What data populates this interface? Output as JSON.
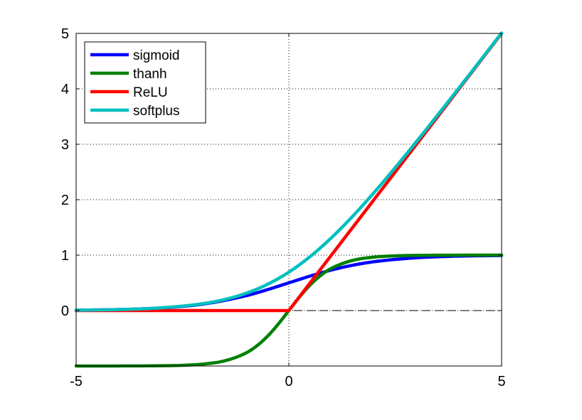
{
  "chart_data": {
    "type": "line",
    "title": "",
    "xlabel": "",
    "ylabel": "",
    "xlim": [
      -5,
      5
    ],
    "ylim": [
      -1,
      5
    ],
    "x_ticks": [
      -5,
      0,
      5
    ],
    "x_tick_labels": [
      "-5",
      "0",
      "5"
    ],
    "y_ticks": [
      0,
      1,
      2,
      3,
      4,
      5
    ],
    "y_tick_labels": [
      "0",
      "1",
      "2",
      "3",
      "4",
      "5"
    ],
    "grid": "dotted",
    "zero_line": "dashed",
    "legend": {
      "placement": "top-left"
    },
    "series": [
      {
        "name": "sigmoid",
        "color": "#0000ff",
        "x": [
          -5,
          -4,
          -3,
          -2,
          -1,
          -0.5,
          0,
          0.5,
          1,
          1.5,
          2,
          3,
          4,
          5
        ],
        "y": [
          0.007,
          0.018,
          0.047,
          0.119,
          0.269,
          0.378,
          0.5,
          0.622,
          0.731,
          0.818,
          0.881,
          0.953,
          0.982,
          0.993
        ]
      },
      {
        "name": "thanh",
        "color": "#008000",
        "x": [
          -5,
          -3,
          -2.5,
          -2,
          -1.5,
          -1,
          -0.75,
          -0.5,
          -0.25,
          0,
          0.25,
          0.5,
          0.75,
          1,
          1.5,
          2,
          2.5,
          3,
          5
        ],
        "y": [
          -1.0,
          -0.995,
          -0.987,
          -0.964,
          -0.905,
          -0.762,
          -0.635,
          -0.462,
          -0.245,
          0,
          0.245,
          0.462,
          0.635,
          0.762,
          0.905,
          0.964,
          0.987,
          0.995,
          1.0
        ]
      },
      {
        "name": "ReLU",
        "color": "#ff0000",
        "x": [
          -5,
          0,
          5
        ],
        "y": [
          0,
          0,
          5
        ]
      },
      {
        "name": "softplus",
        "color": "#00bfbf",
        "x": [
          -5,
          -4,
          -3,
          -2,
          -1.5,
          -1,
          -0.5,
          0,
          0.5,
          1,
          1.5,
          2,
          2.5,
          3,
          4,
          5
        ],
        "y": [
          0.007,
          0.018,
          0.049,
          0.127,
          0.201,
          0.313,
          0.474,
          0.693,
          0.974,
          1.313,
          1.701,
          2.127,
          2.579,
          3.049,
          4.018,
          5.007
        ]
      }
    ]
  }
}
